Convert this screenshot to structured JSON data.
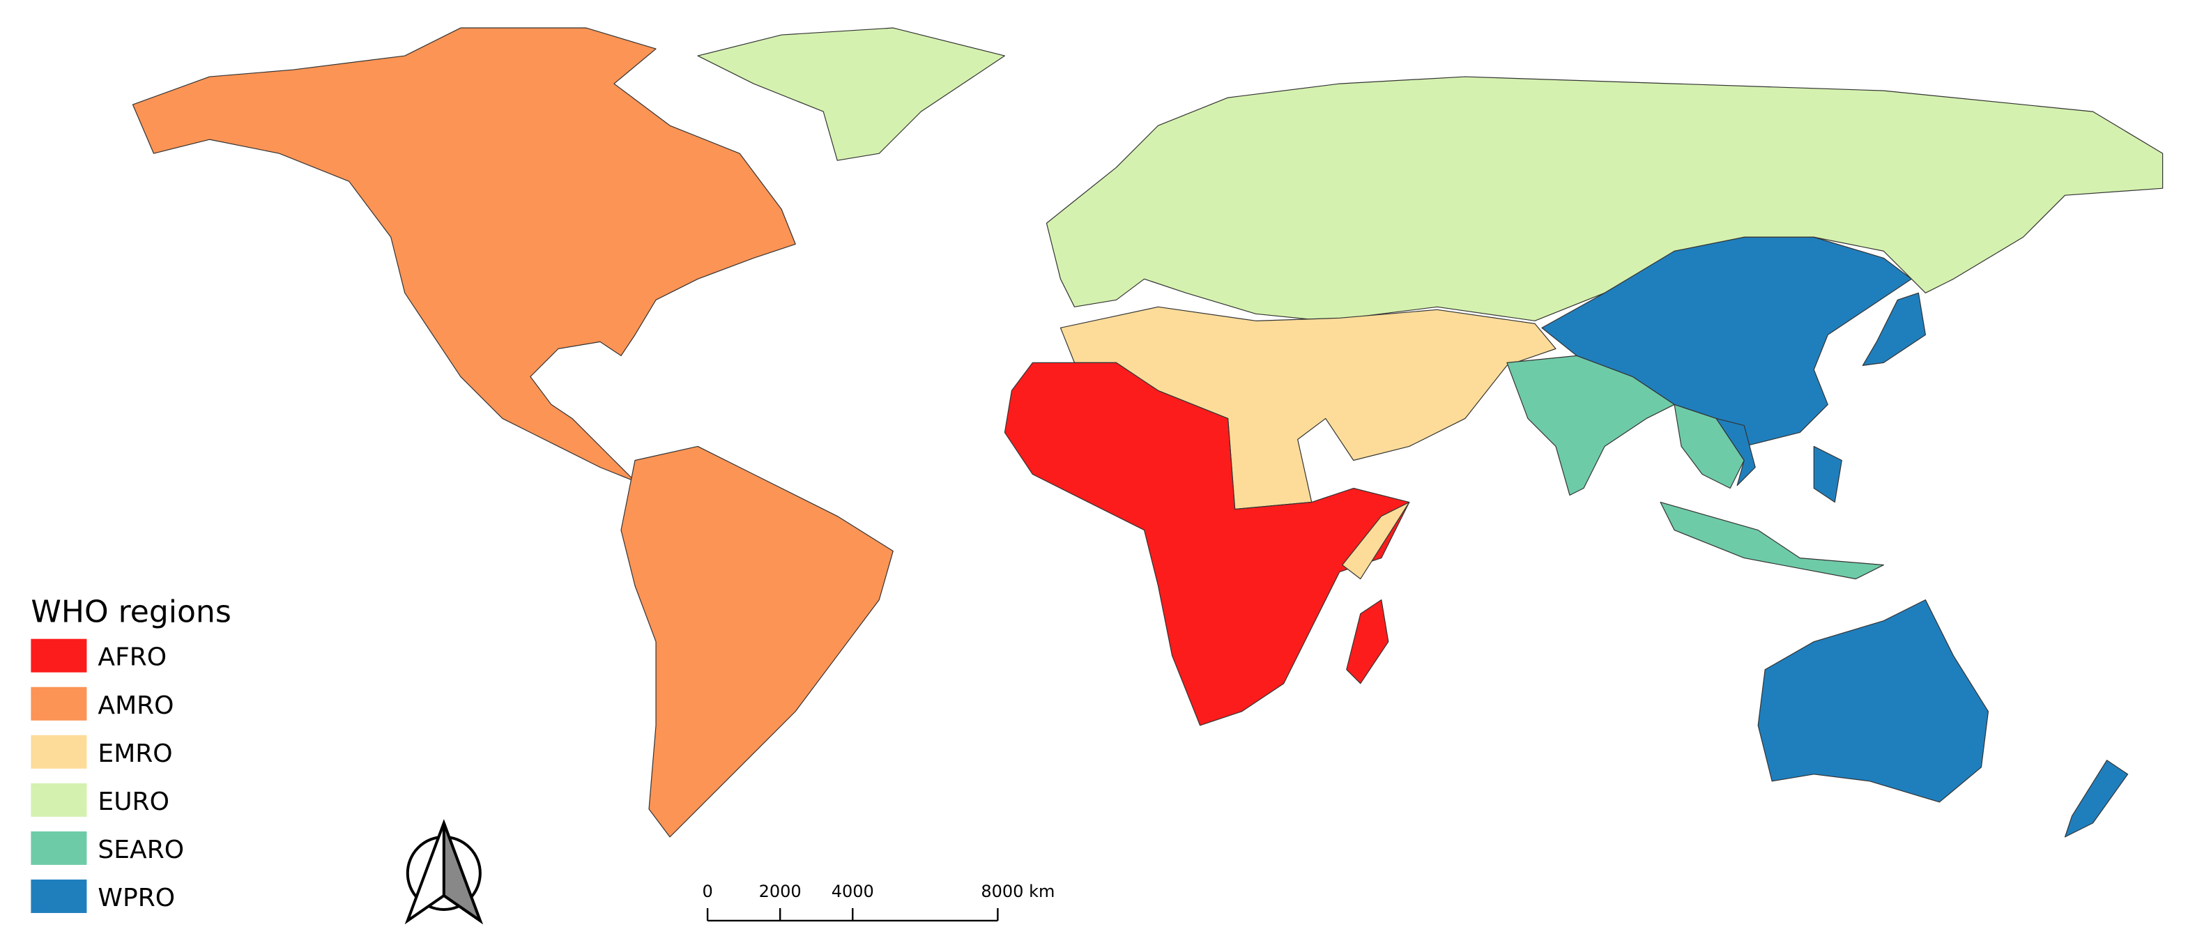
{
  "legend": {
    "title": "WHO regions",
    "items": [
      {
        "name": "AFRO",
        "color": "#fc1c1c"
      },
      {
        "name": "AMRO",
        "color": "#fc9455"
      },
      {
        "name": "EMRO",
        "color": "#fddc99"
      },
      {
        "name": "EURO",
        "color": "#d5f1af"
      },
      {
        "name": "SEARO",
        "color": "#6ecba8"
      },
      {
        "name": "WPRO",
        "color": "#1f7fbd"
      }
    ]
  },
  "scale_bar": {
    "ticks": [
      {
        "value": 0,
        "label": "0"
      },
      {
        "value": 2000,
        "label": "2000"
      },
      {
        "value": 4000,
        "label": "4000"
      },
      {
        "value": 8000,
        "label": "8000 km"
      }
    ]
  }
}
